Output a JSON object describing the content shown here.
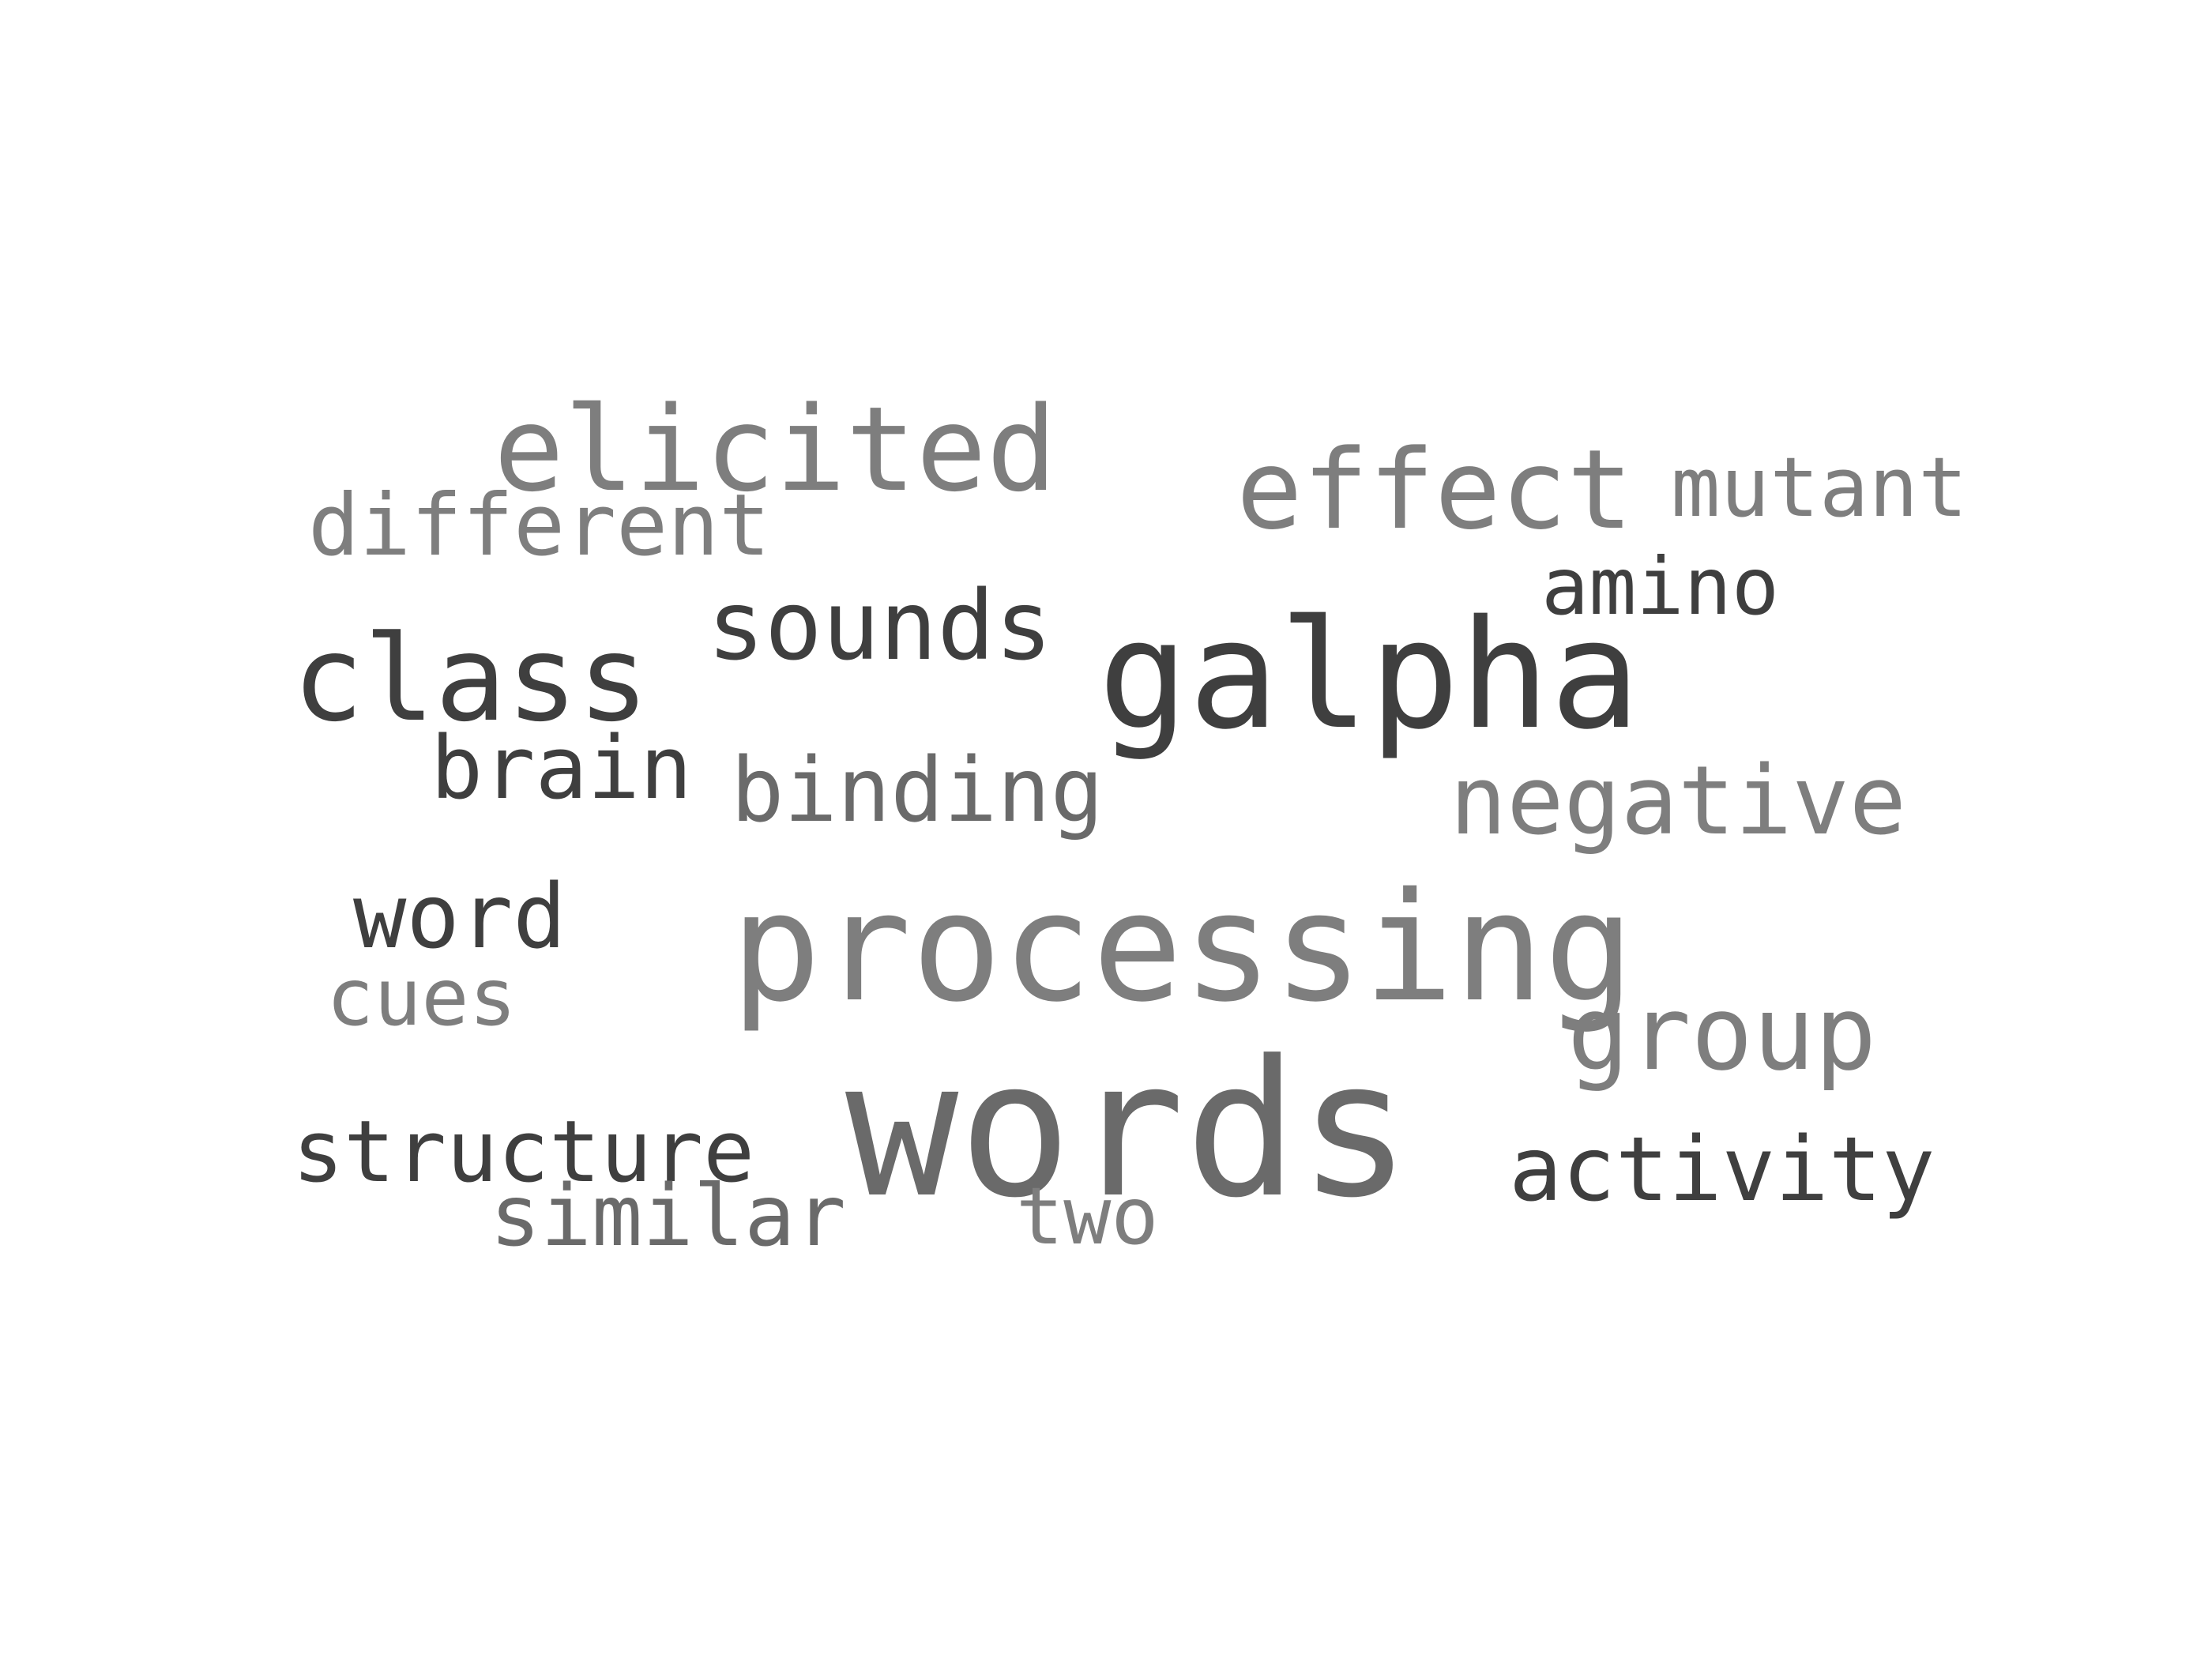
{
  "words": {
    "elicited": "elicited",
    "different": "different",
    "effect": "effect",
    "mutant": "mutant",
    "amino": "amino",
    "sounds": "sounds",
    "class": "class",
    "galpha": "galpha",
    "brain": "brain",
    "binding": "binding",
    "negative": "negative",
    "word": "word",
    "cues": "cues",
    "processing": "processing",
    "group": "group",
    "words": "words",
    "structure": "structure",
    "activity": "activity",
    "similar": "similar",
    "two": "two"
  },
  "colors": {
    "background": "#ffffff",
    "dark": "#3f3f3f",
    "mid": "#6a6a6a",
    "light": "#7e7e7e"
  }
}
